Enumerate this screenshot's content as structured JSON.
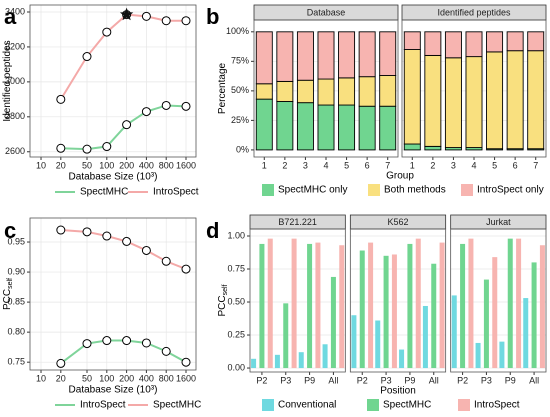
{
  "chart_data": [
    {
      "type": "line",
      "panel": "a",
      "ylabel": "Identified peptides",
      "xlabel": "Database Size (10³)",
      "x": [
        20,
        50,
        100,
        200,
        400,
        800,
        1600
      ],
      "xscale": "log",
      "xlim": [
        6.8,
        2270
      ],
      "xticks": [
        10,
        20,
        50,
        100,
        200,
        400,
        800,
        1600
      ],
      "ylim": [
        2570,
        3440
      ],
      "yticks": [
        2600,
        2800,
        3000,
        3200,
        3400
      ],
      "grid": true,
      "series": [
        {
          "name": "SpectMHC",
          "color": "#7fd49a",
          "values": [
            2620,
            2615,
            2630,
            2755,
            2830,
            2865,
            2860
          ]
        },
        {
          "name": "IntroSpect",
          "color": "#f4a9a8",
          "values": [
            2900,
            3145,
            3285,
            3385,
            3375,
            3350,
            3350
          ]
        }
      ]
    },
    {
      "type": "bar",
      "stacked": true,
      "panel": "b",
      "ylabel": "Percentage",
      "xlabel": "Group",
      "categories": [
        "1",
        "2",
        "3",
        "4",
        "5",
        "6",
        "7"
      ],
      "ylim": [
        -6,
        110
      ],
      "yticks": [
        {
          "value": 0,
          "label": "0%"
        },
        {
          "value": 25,
          "label": "25%"
        },
        {
          "value": 50,
          "label": "50%"
        },
        {
          "value": 75,
          "label": "75%"
        },
        {
          "value": 100,
          "label": "100%"
        }
      ],
      "grid": true,
      "series": [
        {
          "name": "SpectMHC only",
          "color": "#70d590"
        },
        {
          "name": "Both methods",
          "color": "#f9e07f"
        },
        {
          "name": "IntroSpect only",
          "color": "#f7b4b0"
        }
      ],
      "facets": [
        {
          "name": "Database",
          "values": [
            [
              43,
              41,
              40,
              38,
              38,
              37,
              37
            ],
            [
              13,
              17,
              19,
              22,
              23,
              25,
              26
            ],
            [
              44,
              42,
              41,
              40,
              39,
              38,
              37
            ]
          ]
        },
        {
          "name": "Identified peptides",
          "values": [
            [
              5,
              3,
              2,
              2,
              1,
              1,
              1
            ],
            [
              80,
              77,
              76,
              77,
              82,
              83,
              83
            ],
            [
              15,
              20,
              22,
              21,
              17,
              16,
              16
            ]
          ]
        }
      ]
    },
    {
      "type": "line",
      "panel": "c",
      "ylabel": "PCC",
      "ylabel_sub": "self",
      "xlabel": "Database Size (10³)",
      "x": [
        20,
        50,
        100,
        200,
        400,
        800,
        1600
      ],
      "xscale": "log",
      "xlim": [
        6.8,
        2270
      ],
      "xticks": [
        10,
        20,
        50,
        100,
        200,
        400,
        800,
        1600
      ],
      "ylim": [
        0.737,
        0.99
      ],
      "yticks": [
        0.75,
        {
          "value": 0.8,
          "label": "0.80"
        },
        0.85,
        {
          "value": 0.9,
          "label": "0.90"
        },
        0.95
      ],
      "grid": true,
      "series": [
        {
          "name": "IntroSpect",
          "color": "#7fd49a",
          "values": [
            0.748,
            0.781,
            0.786,
            0.786,
            0.782,
            0.768,
            0.75
          ]
        },
        {
          "name": "SpectMHC",
          "color": "#f4a9a8",
          "values": [
            0.97,
            0.967,
            0.96,
            0.951,
            0.936,
            0.918,
            0.905
          ]
        }
      ]
    },
    {
      "type": "bar",
      "stacked": false,
      "panel": "d",
      "ylabel": "PCC",
      "ylabel_sub": "self",
      "xlabel": "Position",
      "categories": [
        "P2",
        "P3",
        "P9",
        "All"
      ],
      "ylim": [
        -0.03,
        1.053
      ],
      "yticks": [
        {
          "value": 0,
          "label": "0.00"
        },
        0.25,
        {
          "value": 0.5,
          "label": "0.50"
        },
        0.75,
        {
          "value": 1,
          "label": "1.00"
        }
      ],
      "grid": true,
      "series": [
        {
          "name": "Conventional",
          "color": "#6fd9e0"
        },
        {
          "name": "SpectMHC",
          "color": "#70d590"
        },
        {
          "name": "IntroSpect",
          "color": "#f7b4b0"
        }
      ],
      "facets": [
        {
          "name": "B721.221",
          "values": [
            [
              0.07,
              0.1,
              0.12,
              0.18
            ],
            [
              0.94,
              0.49,
              0.94,
              0.69
            ],
            [
              0.98,
              0.98,
              0.95,
              0.93
            ]
          ]
        },
        {
          "name": "K562",
          "values": [
            [
              0.4,
              0.36,
              0.14,
              0.47
            ],
            [
              0.89,
              0.85,
              0.94,
              0.79
            ],
            [
              0.95,
              0.86,
              0.98,
              0.95
            ]
          ]
        },
        {
          "name": "Jurkat",
          "values": [
            [
              0.55,
              0.19,
              0.2,
              0.53
            ],
            [
              0.94,
              0.67,
              0.98,
              0.8
            ],
            [
              0.98,
              0.84,
              0.98,
              0.93
            ]
          ]
        }
      ]
    }
  ]
}
